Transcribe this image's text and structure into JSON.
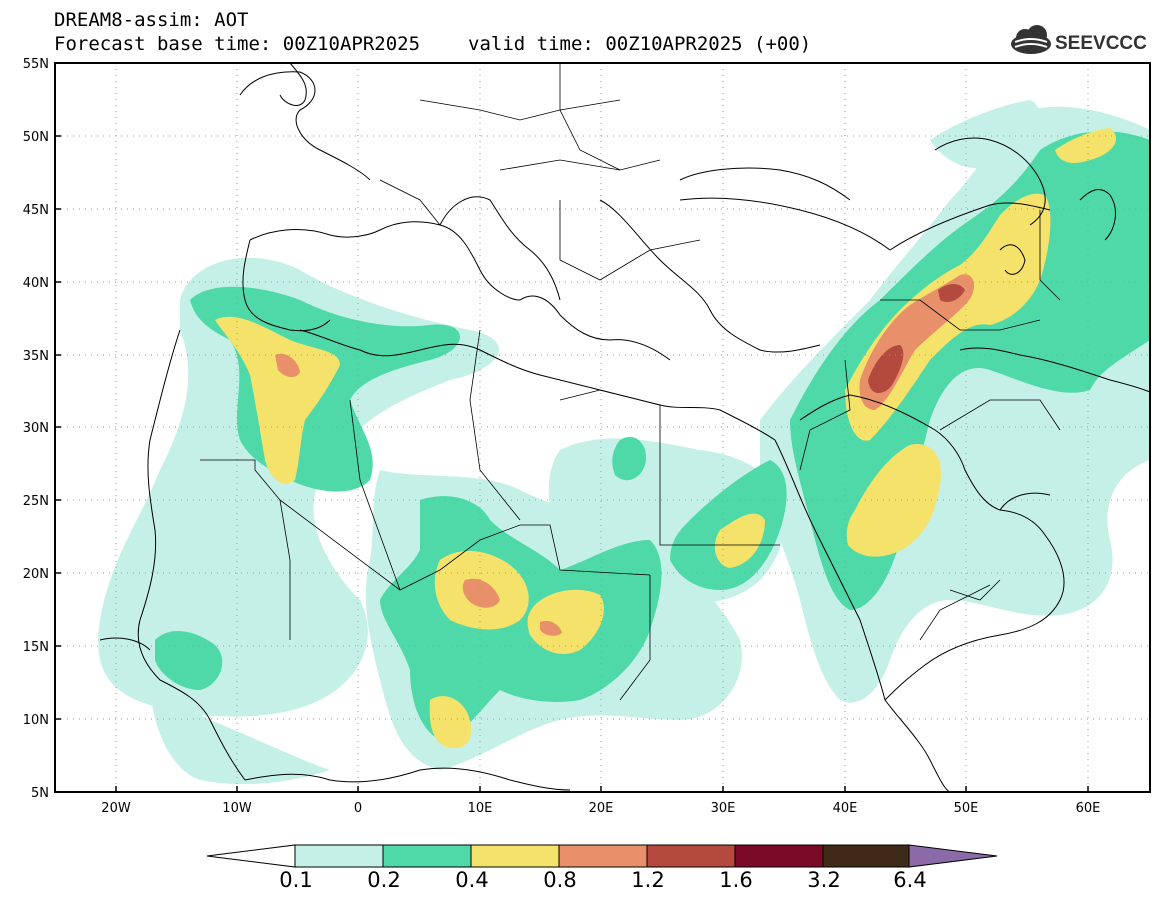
{
  "header": {
    "title_line1": "DREAM8-assim: AOT",
    "title_line2_base": "Forecast base time: 00Z10APR2025",
    "title_line2_valid": "valid time: 00Z10APR2025 (+00)",
    "logo_text": "SEEVCCC"
  },
  "map": {
    "variable": "AOT",
    "lon_range": [
      -25,
      65
    ],
    "lat_range": [
      5,
      55
    ],
    "lon_ticks": [
      {
        "value": -20,
        "label": "20W"
      },
      {
        "value": -10,
        "label": "10W"
      },
      {
        "value": 0,
        "label": "0"
      },
      {
        "value": 10,
        "label": "10E"
      },
      {
        "value": 20,
        "label": "20E"
      },
      {
        "value": 30,
        "label": "30E"
      },
      {
        "value": 40,
        "label": "40E"
      },
      {
        "value": 50,
        "label": "50E"
      },
      {
        "value": 60,
        "label": "60E"
      }
    ],
    "lat_ticks": [
      {
        "value": 5,
        "label": "5N"
      },
      {
        "value": 10,
        "label": "10N"
      },
      {
        "value": 15,
        "label": "15N"
      },
      {
        "value": 20,
        "label": "20N"
      },
      {
        "value": 25,
        "label": "25N"
      },
      {
        "value": 30,
        "label": "30N"
      },
      {
        "value": 35,
        "label": "35N"
      },
      {
        "value": 40,
        "label": "40N"
      },
      {
        "value": 45,
        "label": "45N"
      },
      {
        "value": 50,
        "label": "50N"
      },
      {
        "value": 55,
        "label": "55N"
      }
    ],
    "grid": true
  },
  "colorbar": {
    "levels": [
      "0.1",
      "0.2",
      "0.4",
      "0.8",
      "1.2",
      "1.6",
      "3.2",
      "6.4"
    ],
    "colors": [
      "#ffffff",
      "#c5f0e8",
      "#4fd9a8",
      "#f5e26b",
      "#e8906a",
      "#b4493e",
      "#7a0a26",
      "#3e2a16",
      "#8c6aa8"
    ]
  }
}
